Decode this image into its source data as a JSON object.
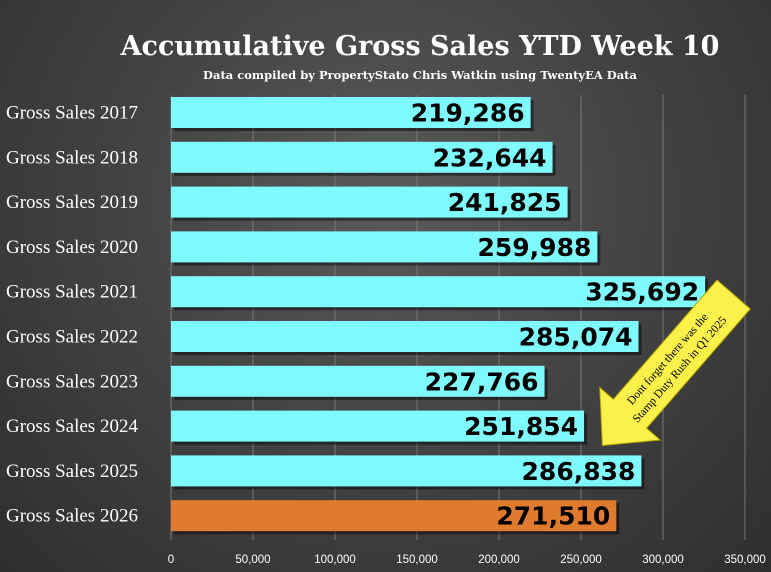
{
  "chart_data": {
    "type": "bar",
    "orientation": "horizontal",
    "title": "Accumulative Gross Sales YTD Week 10",
    "subtitle": "Data compiled by PropertyStato Chris Watkin using TwentyEA Data",
    "categories": [
      "Gross Sales 2017",
      "Gross Sales 2018",
      "Gross Sales 2019",
      "Gross Sales 2020",
      "Gross Sales 2021",
      "Gross Sales 2022",
      "Gross Sales 2023",
      "Gross Sales 2024",
      "Gross Sales 2025",
      "Gross Sales 2026"
    ],
    "values": [
      219286,
      232644,
      241825,
      259988,
      325692,
      285074,
      227766,
      251854,
      286838,
      271510
    ],
    "value_labels": [
      "219,286",
      "232,644",
      "241,825",
      "259,988",
      "325,692",
      "285,074",
      "227,766",
      "251,854",
      "286,838",
      "271,510"
    ],
    "xlim": [
      0,
      350000
    ],
    "xticks": [
      0,
      50000,
      100000,
      150000,
      200000,
      250000,
      300000,
      350000
    ],
    "xtick_labels": [
      "0",
      "50,000",
      "100,000",
      "150,000",
      "200,000",
      "250,000",
      "300,000",
      "350,000"
    ],
    "grid": true,
    "colors": {
      "default_bar": "#7ffbff",
      "highlight_bar": "#e07a2e",
      "annotation_fill": "#fbf14a"
    },
    "highlight_index": 9,
    "annotation": {
      "lines": [
        "Dont forget there was the",
        "Stamp Duty Rush in Q1 2025"
      ],
      "points_to": "Gross Sales 2025"
    }
  }
}
